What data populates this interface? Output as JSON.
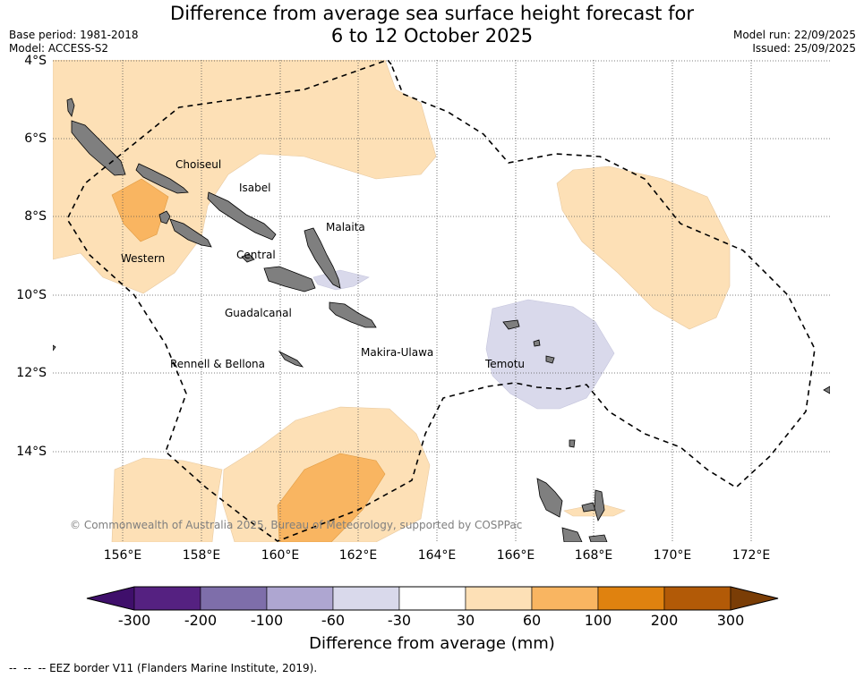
{
  "header": {
    "title_line1": "Difference from average sea surface height forecast for",
    "title_line2": "6 to 12 October 2025",
    "base_period": "Base period: 1981-2018",
    "model": "Model: ACCESS-S2",
    "model_run": "Model run: 22/09/2025",
    "issued": "Issued: 25/09/2025"
  },
  "axes": {
    "lat_labels": [
      "4°S",
      "6°S",
      "8°S",
      "10°S",
      "12°S",
      "14°S"
    ],
    "lon_labels": [
      "156°E",
      "158°E",
      "160°E",
      "162°E",
      "164°E",
      "166°E",
      "168°E",
      "170°E",
      "172°E"
    ]
  },
  "places": {
    "choiseul": "Choiseul",
    "isabel": "Isabel",
    "western": "Western",
    "malaita": "Malaita",
    "central": "Central",
    "guadalcanal": "Guadalcanal",
    "makira": "Makira-Ulawa",
    "rennell": "Rennell & Bellona",
    "temotu": "Temotu"
  },
  "copyright": "© Commonwealth of Australia 2025, Bureau of Meteorology, supported by COSPPac",
  "colorbar": {
    "label": "Difference from average (mm)",
    "ticks": [
      "-300",
      "-200",
      "-100",
      "-60",
      "-30",
      "30",
      "60",
      "100",
      "200",
      "300"
    ],
    "colors": [
      "#3f0f6b",
      "#552181",
      "#7e6eaa",
      "#aea6d1",
      "#d9d9eb",
      "#ffffff",
      "#fde0b6",
      "#f9b561",
      "#e0820f",
      "#b25a07",
      "#7a3d06"
    ]
  },
  "legend": {
    "eez": "EEZ border V11 (Flanders Marine Institute, 2019)."
  }
}
